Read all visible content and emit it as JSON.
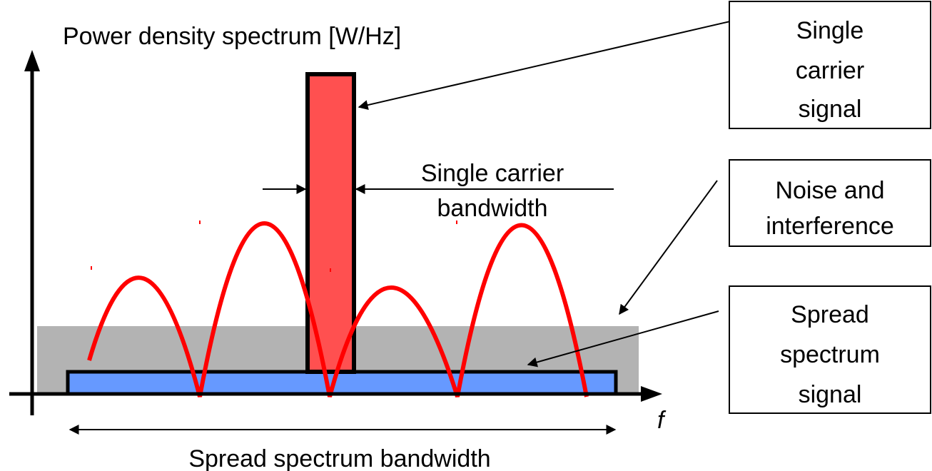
{
  "y_axis_label": "Power density spectrum [W/Hz]",
  "x_axis_label": "f",
  "spread_bandwidth_label": "Spread spectrum bandwidth",
  "carrier_bandwidth_label": [
    "Single carrier",
    "bandwidth"
  ],
  "boxes": {
    "single_carrier": [
      "Single",
      "carrier",
      "signal"
    ],
    "noise": [
      "Noise and",
      "interference"
    ],
    "spread": [
      "Spread",
      "spectrum",
      "signal"
    ]
  },
  "colors": {
    "carrier": "#ff5050",
    "noise": "#b3b3b3",
    "spread": "#6699ff",
    "lobes": "#ff0000",
    "stroke": "#000000"
  }
}
